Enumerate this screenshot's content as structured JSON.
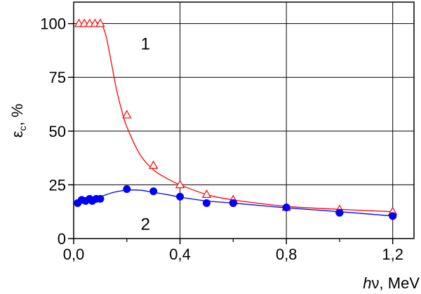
{
  "chart_data": {
    "type": "line",
    "xlabel": {
      "italic": "h",
      "rest": "ν, MeV"
    },
    "ylabel": {
      "main": "ε",
      "sub": "c",
      "rest": ", %"
    },
    "xlim": [
      0,
      1.28
    ],
    "ylim": [
      0,
      110
    ],
    "x_ticks": [
      {
        "value": 0.0,
        "label": "0,0"
      },
      {
        "value": 0.4,
        "label": "0,4"
      },
      {
        "value": 0.8,
        "label": "0,8"
      },
      {
        "value": 1.2,
        "label": "1,2"
      }
    ],
    "x_minor_ticks": [
      0.2,
      0.6,
      1.0
    ],
    "y_ticks": [
      {
        "value": 0,
        "label": "0"
      },
      {
        "value": 25,
        "label": "25"
      },
      {
        "value": 50,
        "label": "50"
      },
      {
        "value": 75,
        "label": "75"
      },
      {
        "value": 100,
        "label": "100"
      }
    ],
    "grid": true,
    "series": [
      {
        "label": "1",
        "label_pos": [
          0.27,
          88
        ],
        "color": "#ff0000",
        "marker": "open-triangle",
        "points": [
          [
            0.02,
            100
          ],
          [
            0.04,
            100
          ],
          [
            0.06,
            100
          ],
          [
            0.08,
            100
          ],
          [
            0.1,
            100
          ],
          [
            0.2,
            57.5
          ],
          [
            0.3,
            34
          ],
          [
            0.4,
            25
          ],
          [
            0.5,
            20.5
          ],
          [
            0.6,
            18
          ],
          [
            0.8,
            14.5
          ],
          [
            1.0,
            13.5
          ],
          [
            1.2,
            12.5
          ]
        ],
        "curve": [
          [
            0.02,
            100
          ],
          [
            0.06,
            100
          ],
          [
            0.1,
            100
          ],
          [
            0.12,
            95
          ],
          [
            0.14,
            83
          ],
          [
            0.16,
            70
          ],
          [
            0.18,
            60
          ],
          [
            0.2,
            52
          ],
          [
            0.25,
            39
          ],
          [
            0.3,
            32
          ],
          [
            0.35,
            28
          ],
          [
            0.4,
            25
          ],
          [
            0.5,
            20.5
          ],
          [
            0.6,
            18
          ],
          [
            0.8,
            15
          ],
          [
            1.0,
            13.6
          ],
          [
            1.2,
            12.5
          ]
        ]
      },
      {
        "label": "2",
        "label_pos": [
          0.27,
          4
        ],
        "color": "#0000ff",
        "marker": "filled-circle",
        "points": [
          [
            0.015,
            16.5
          ],
          [
            0.03,
            18
          ],
          [
            0.045,
            17.5
          ],
          [
            0.06,
            18.5
          ],
          [
            0.07,
            17.5
          ],
          [
            0.085,
            18.5
          ],
          [
            0.1,
            18.5
          ],
          [
            0.2,
            23
          ],
          [
            0.3,
            22
          ],
          [
            0.4,
            19.5
          ],
          [
            0.5,
            16.5
          ],
          [
            0.6,
            16.5
          ],
          [
            0.8,
            14.5
          ],
          [
            1.0,
            12
          ],
          [
            1.2,
            10.5
          ]
        ],
        "curve": [
          [
            0.015,
            16.5
          ],
          [
            0.05,
            18
          ],
          [
            0.1,
            19.5
          ],
          [
            0.15,
            21.5
          ],
          [
            0.2,
            22.5
          ],
          [
            0.25,
            22.5
          ],
          [
            0.3,
            21.5
          ],
          [
            0.35,
            20.5
          ],
          [
            0.4,
            19.3
          ],
          [
            0.5,
            17.5
          ],
          [
            0.6,
            16.5
          ],
          [
            0.8,
            14.3
          ],
          [
            1.0,
            12.5
          ],
          [
            1.2,
            10.5
          ]
        ]
      }
    ]
  }
}
